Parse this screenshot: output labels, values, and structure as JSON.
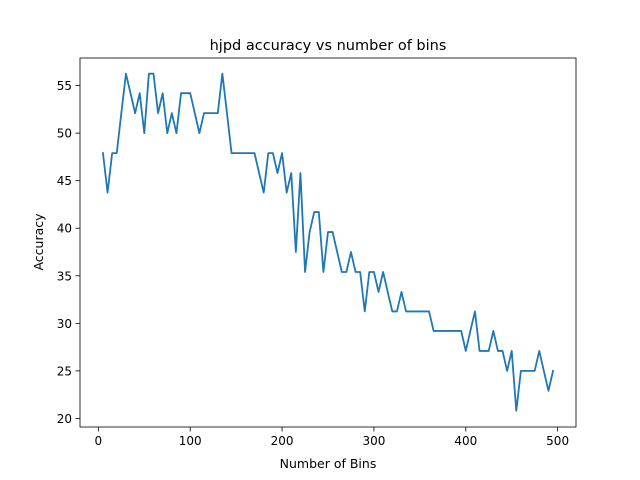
{
  "chart_data": {
    "type": "line",
    "title": "hjpd accuracy vs number of bins",
    "xlabel": "Number of Bins",
    "ylabel": "Accuracy",
    "xlim": [
      -20,
      520
    ],
    "ylim": [
      19.1,
      57.9
    ],
    "xticks": [
      0,
      100,
      200,
      300,
      400,
      500
    ],
    "yticks": [
      20,
      25,
      30,
      35,
      40,
      45,
      50,
      55
    ],
    "grid": false,
    "legend": "none",
    "line_color": "#1f77b4",
    "series": [
      {
        "x": [
          5,
          10,
          15,
          20,
          25,
          30,
          35,
          40,
          45,
          50,
          55,
          60,
          65,
          70,
          75,
          80,
          85,
          90,
          95,
          100,
          105,
          110,
          115,
          120,
          125,
          130,
          135,
          140,
          145,
          150,
          155,
          160,
          165,
          170,
          175,
          180,
          185,
          190,
          195,
          200,
          205,
          210,
          215,
          220,
          225,
          230,
          235,
          240,
          245,
          250,
          255,
          260,
          265,
          270,
          275,
          280,
          285,
          290,
          295,
          300,
          305,
          310,
          315,
          320,
          325,
          330,
          335,
          340,
          345,
          350,
          355,
          360,
          365,
          370,
          375,
          380,
          385,
          390,
          395,
          400,
          405,
          410,
          415,
          420,
          425,
          430,
          435,
          440,
          445,
          450,
          455,
          460,
          465,
          470,
          475,
          480,
          485,
          490,
          495
        ],
        "y": [
          47.9,
          43.75,
          47.9,
          47.9,
          52.1,
          56.25,
          54.2,
          52.1,
          54.2,
          50.0,
          56.25,
          56.25,
          52.1,
          54.2,
          50.0,
          52.1,
          50.0,
          54.2,
          54.2,
          54.2,
          52.1,
          50.0,
          52.1,
          52.1,
          52.1,
          52.1,
          56.25,
          52.1,
          47.9,
          47.9,
          47.9,
          47.9,
          47.9,
          47.9,
          45.8,
          43.75,
          47.9,
          47.9,
          45.8,
          47.9,
          43.75,
          45.8,
          37.5,
          45.8,
          35.4,
          39.6,
          41.7,
          41.7,
          35.4,
          39.6,
          39.6,
          37.5,
          35.4,
          35.4,
          37.5,
          35.4,
          35.4,
          31.25,
          35.4,
          35.4,
          33.3,
          35.4,
          33.3,
          31.25,
          31.25,
          33.3,
          31.25,
          31.25,
          31.25,
          31.25,
          31.25,
          31.25,
          29.2,
          29.2,
          29.2,
          29.2,
          29.2,
          29.2,
          29.2,
          27.1,
          29.2,
          31.25,
          27.1,
          27.1,
          27.1,
          29.2,
          27.1,
          27.1,
          25.0,
          27.1,
          20.8,
          25.0,
          25.0,
          25.0,
          25.0,
          27.1,
          25.0,
          22.9,
          25.0
        ]
      }
    ]
  }
}
